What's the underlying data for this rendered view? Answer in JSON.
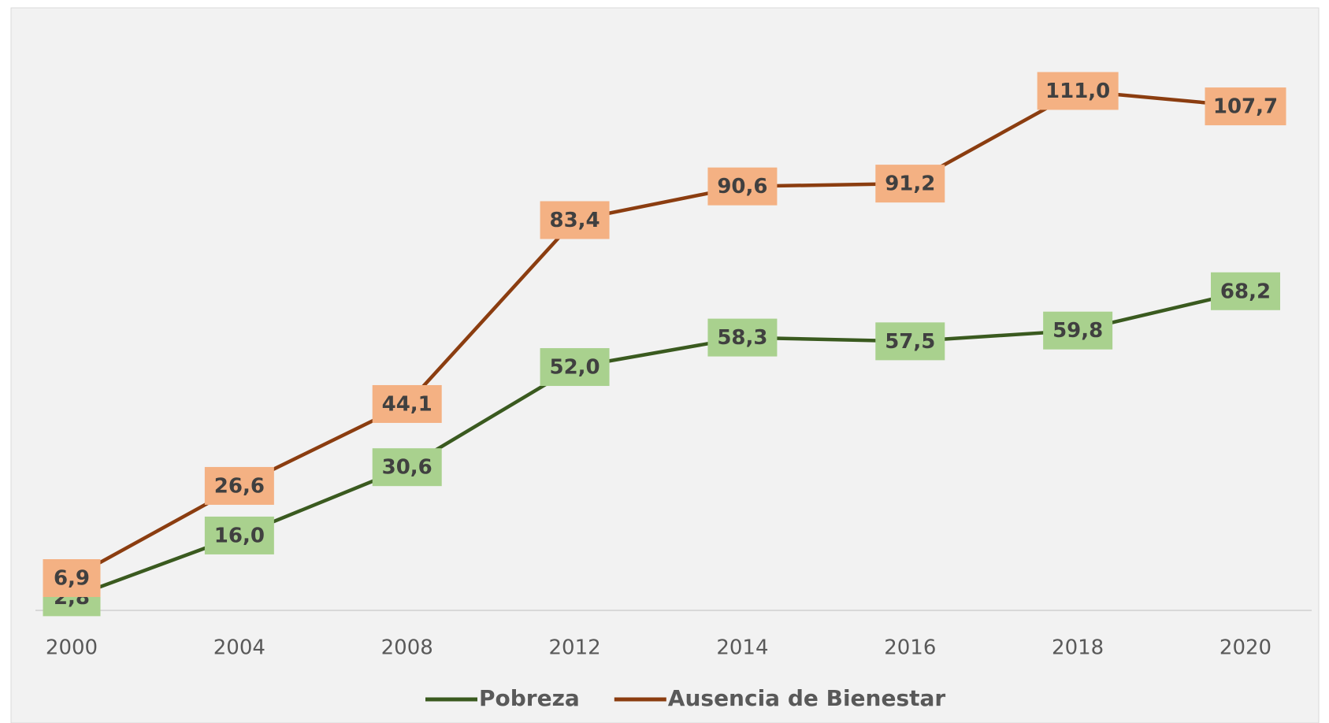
{
  "chart_data": {
    "type": "line",
    "categories": [
      "2000",
      "2004",
      "2008",
      "2012",
      "2014",
      "2016",
      "2018",
      "2020"
    ],
    "series": [
      {
        "name": "Pobreza",
        "color": "#3a5a1f",
        "label_color": "#a9d18e",
        "values": [
          2.8,
          16.0,
          30.6,
          52.0,
          58.3,
          57.5,
          59.8,
          68.2
        ],
        "value_labels": [
          "2,8",
          "16,0",
          "30,6",
          "52,0",
          "58,3",
          "57,5",
          "59,8",
          "68,2"
        ]
      },
      {
        "name": "Ausencia de Bienestar",
        "color": "#8b3d10",
        "label_color": "#f4b183",
        "values": [
          6.9,
          26.6,
          44.1,
          83.4,
          90.6,
          91.2,
          111.0,
          107.7
        ],
        "value_labels": [
          "6,9",
          "26,6",
          "44,1",
          "83,4",
          "90,6",
          "91,2",
          "111,0",
          "107,7"
        ]
      }
    ],
    "ylim": [
      0,
      120
    ],
    "legend": "bottom"
  }
}
